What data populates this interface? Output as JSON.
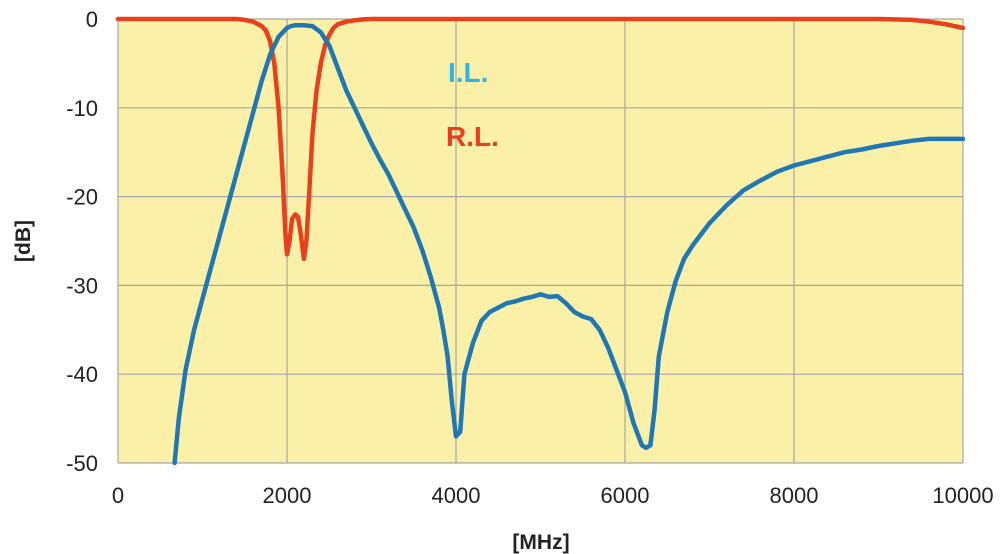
{
  "chart_data": {
    "type": "line",
    "xlabel": "[MHz]",
    "ylabel": "[dB]",
    "xlim": [
      0,
      10000
    ],
    "ylim": [
      -50,
      0
    ],
    "xticks": [
      0,
      2000,
      4000,
      6000,
      8000,
      10000
    ],
    "yticks": [
      0,
      -10,
      -20,
      -30,
      -40,
      -50
    ],
    "grid": true,
    "legend_placement": "inside-top-center",
    "colors": {
      "plot_background": "#faf0a8",
      "grid": "#a6a6a6"
    },
    "series": [
      {
        "name": "I.L.",
        "color": "#1f77b4",
        "label_color": "#2cb5e8",
        "x": [
          670,
          720,
          800,
          900,
          1000,
          1200,
          1400,
          1600,
          1700,
          1800,
          1900,
          2000,
          2050,
          2100,
          2200,
          2300,
          2400,
          2500,
          2600,
          2700,
          2800,
          2900,
          3000,
          3100,
          3200,
          3300,
          3400,
          3500,
          3600,
          3700,
          3800,
          3850,
          3900,
          3950,
          4000,
          4050,
          4100,
          4200,
          4300,
          4400,
          4500,
          4600,
          4700,
          4800,
          4900,
          5000,
          5100,
          5200,
          5300,
          5400,
          5500,
          5600,
          5700,
          5800,
          5900,
          6000,
          6100,
          6200,
          6250,
          6300,
          6350,
          6400,
          6500,
          6600,
          6700,
          6800,
          7000,
          7200,
          7400,
          7600,
          7800,
          8000,
          8200,
          8400,
          8600,
          8800,
          9000,
          9200,
          9400,
          9600,
          9800,
          10000
        ],
        "y": [
          -50,
          -45,
          -39.5,
          -35,
          -31.5,
          -24.5,
          -17.5,
          -10.5,
          -7,
          -4,
          -2,
          -1,
          -0.8,
          -0.7,
          -0.7,
          -0.8,
          -1.5,
          -3,
          -5.5,
          -8,
          -10,
          -12,
          -14,
          -15.8,
          -17.5,
          -19.5,
          -21.5,
          -23.5,
          -26,
          -29,
          -32.5,
          -35,
          -38,
          -43,
          -47,
          -46.5,
          -40,
          -36.5,
          -34,
          -33,
          -32.5,
          -32,
          -31.8,
          -31.5,
          -31.3,
          -31,
          -31.3,
          -31.2,
          -32,
          -33,
          -33.5,
          -33.8,
          -35,
          -37,
          -39.5,
          -42,
          -45.5,
          -48,
          -48.3,
          -48,
          -44,
          -38,
          -33,
          -29.5,
          -27,
          -25.5,
          -23,
          -21,
          -19.3,
          -18.2,
          -17.2,
          -16.5,
          -16,
          -15.5,
          -15,
          -14.7,
          -14.3,
          -14,
          -13.7,
          -13.5,
          -13.5,
          -13.5
        ]
      },
      {
        "name": "R.L.",
        "color": "#e8401c",
        "label_color": "#e8401c",
        "x": [
          0,
          1000,
          1400,
          1500,
          1600,
          1700,
          1750,
          1800,
          1850,
          1900,
          1950,
          1980,
          2000,
          2030,
          2060,
          2100,
          2130,
          2160,
          2200,
          2230,
          2260,
          2300,
          2350,
          2400,
          2450,
          2500,
          2550,
          2600,
          2700,
          2800,
          2900,
          3000,
          3200,
          4000,
          5000,
          6000,
          7000,
          8000,
          9000,
          9400,
          9600,
          9800,
          10000
        ],
        "y": [
          0,
          0,
          0,
          -0.1,
          -0.3,
          -0.8,
          -1.3,
          -2.5,
          -5,
          -10,
          -18,
          -24,
          -26.5,
          -25,
          -22.5,
          -22,
          -22.3,
          -24,
          -27,
          -25,
          -20,
          -13,
          -8,
          -5,
          -3,
          -1.8,
          -1,
          -0.6,
          -0.3,
          -0.15,
          -0.05,
          0,
          0,
          0,
          0,
          0,
          0,
          0,
          0,
          -0.1,
          -0.3,
          -0.6,
          -1
        ]
      }
    ]
  }
}
